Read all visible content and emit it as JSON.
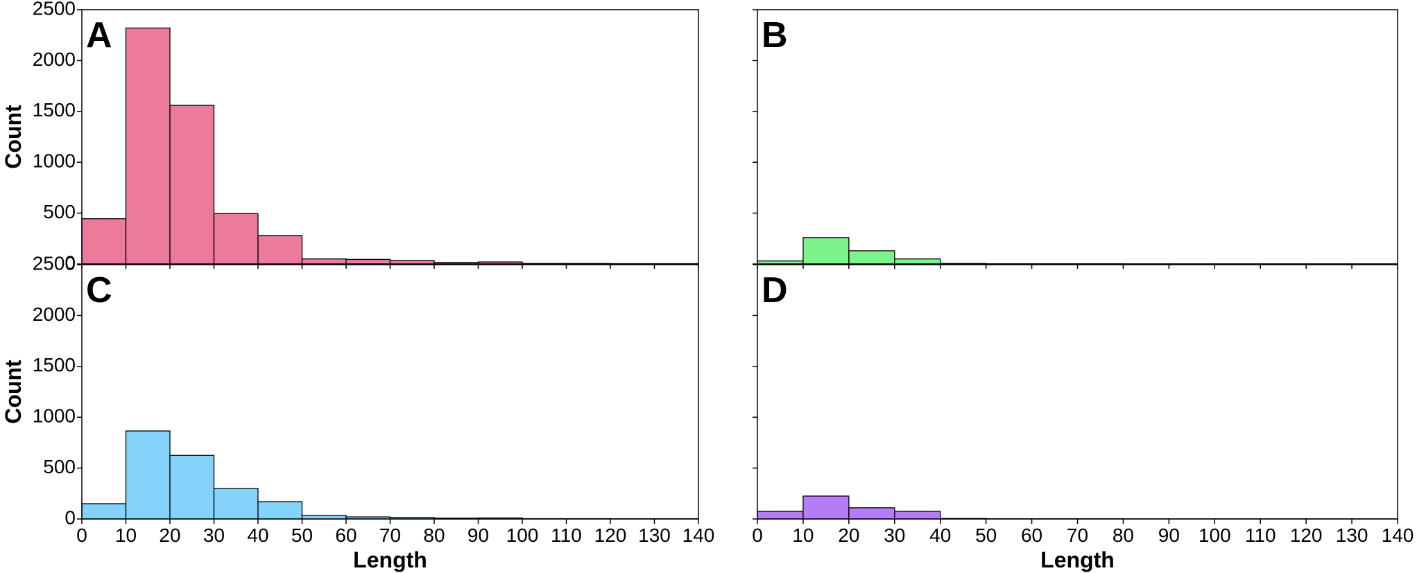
{
  "chart_data": [
    {
      "type": "bar",
      "panel_label": "A",
      "color": "#EC7A9B",
      "bin_edges": [
        0,
        10,
        20,
        30,
        40,
        50,
        60,
        70,
        80,
        90,
        100,
        110,
        120,
        130,
        140
      ],
      "values": [
        445,
        2320,
        1560,
        495,
        280,
        50,
        45,
        35,
        15,
        20,
        5,
        5,
        3,
        3
      ],
      "xlabel": "",
      "ylabel": "Count",
      "xlim": [
        0,
        140
      ],
      "ylim": [
        0,
        2500
      ],
      "xticks": [
        0,
        10,
        20,
        30,
        40,
        50,
        60,
        70,
        80,
        90,
        100,
        110,
        120,
        130,
        140
      ],
      "yticks": [
        0,
        500,
        1000,
        1500,
        2000,
        2500
      ],
      "show_xtick_labels": false,
      "show_ytick_labels": true
    },
    {
      "type": "bar",
      "panel_label": "B",
      "color": "#7CF28A",
      "bin_edges": [
        0,
        10,
        20,
        30,
        40,
        50,
        60,
        70,
        80,
        90,
        100,
        110,
        120,
        130,
        140
      ],
      "values": [
        30,
        260,
        130,
        50,
        5,
        2,
        2,
        2,
        1,
        1,
        1,
        1,
        1,
        1
      ],
      "xlabel": "",
      "ylabel": "",
      "xlim": [
        0,
        140
      ],
      "ylim": [
        0,
        2500
      ],
      "xticks": [
        0,
        10,
        20,
        30,
        40,
        50,
        60,
        70,
        80,
        90,
        100,
        110,
        120,
        130,
        140
      ],
      "yticks": [
        0,
        500,
        1000,
        1500,
        2000,
        2500
      ],
      "show_xtick_labels": false,
      "show_ytick_labels": false
    },
    {
      "type": "bar",
      "panel_label": "C",
      "color": "#83D3FA",
      "bin_edges": [
        0,
        10,
        20,
        30,
        40,
        50,
        60,
        70,
        80,
        90,
        100,
        110,
        120,
        130,
        140
      ],
      "values": [
        150,
        865,
        625,
        300,
        170,
        35,
        20,
        15,
        8,
        10,
        3,
        3,
        2,
        2
      ],
      "xlabel": "Length",
      "ylabel": "Count",
      "xlim": [
        0,
        140
      ],
      "ylim": [
        0,
        2500
      ],
      "xticks": [
        0,
        10,
        20,
        30,
        40,
        50,
        60,
        70,
        80,
        90,
        100,
        110,
        120,
        130,
        140
      ],
      "yticks": [
        0,
        500,
        1000,
        1500,
        2000,
        2500
      ],
      "show_xtick_labels": true,
      "show_ytick_labels": true
    },
    {
      "type": "bar",
      "panel_label": "D",
      "color": "#B57CF7",
      "bin_edges": [
        0,
        10,
        20,
        30,
        40,
        50,
        60,
        70,
        80,
        90,
        100,
        110,
        120,
        130,
        140
      ],
      "values": [
        75,
        225,
        110,
        75,
        5,
        2,
        2,
        2,
        1,
        1,
        1,
        1,
        1,
        1
      ],
      "xlabel": "Length",
      "ylabel": "",
      "xlim": [
        0,
        140
      ],
      "ylim": [
        0,
        2500
      ],
      "xticks": [
        0,
        10,
        20,
        30,
        40,
        50,
        60,
        70,
        80,
        90,
        100,
        110,
        120,
        130,
        140
      ],
      "yticks": [
        0,
        500,
        1000,
        1500,
        2000,
        2500
      ],
      "show_xtick_labels": true,
      "show_ytick_labels": false
    }
  ]
}
